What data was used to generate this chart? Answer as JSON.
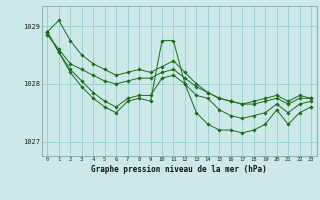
{
  "title": "Graphe pression niveau de la mer (hPa)",
  "bg_color": "#cce8e8",
  "grid_color": "#99cccc",
  "line_color": "#1a6b1a",
  "xlim": [
    -0.5,
    23.5
  ],
  "ylim": [
    1026.75,
    1029.35
  ],
  "yticks": [
    1027,
    1028,
    1029
  ],
  "xticks": [
    0,
    1,
    2,
    3,
    4,
    5,
    6,
    7,
    8,
    9,
    10,
    11,
    12,
    13,
    14,
    15,
    16,
    17,
    18,
    19,
    20,
    21,
    22,
    23
  ],
  "series": [
    [
      1028.9,
      1029.1,
      1028.75,
      1028.5,
      1028.35,
      1028.25,
      1028.15,
      1028.2,
      1028.25,
      1028.2,
      1028.3,
      1028.4,
      1028.2,
      1028.0,
      1027.85,
      1027.75,
      1027.7,
      1027.65,
      1027.7,
      1027.75,
      1027.8,
      1027.7,
      1027.8,
      1027.75
    ],
    [
      1028.85,
      1028.6,
      1028.35,
      1028.25,
      1028.15,
      1028.05,
      1028.0,
      1028.05,
      1028.1,
      1028.1,
      1028.2,
      1028.25,
      1028.1,
      1027.95,
      1027.85,
      1027.75,
      1027.7,
      1027.65,
      1027.65,
      1027.7,
      1027.75,
      1027.65,
      1027.75,
      1027.75
    ],
    [
      1028.9,
      1028.55,
      1028.2,
      1027.95,
      1027.75,
      1027.6,
      1027.5,
      1027.7,
      1027.75,
      1027.7,
      1028.75,
      1028.75,
      1028.0,
      1027.5,
      1027.3,
      1027.2,
      1027.2,
      1027.15,
      1027.2,
      1027.3,
      1027.55,
      1027.3,
      1027.5,
      1027.6
    ],
    [
      1028.9,
      1028.55,
      1028.25,
      1028.05,
      1027.85,
      1027.7,
      1027.6,
      1027.75,
      1027.8,
      1027.8,
      1028.1,
      1028.15,
      1028.0,
      1027.8,
      1027.75,
      1027.55,
      1027.45,
      1027.4,
      1027.45,
      1027.5,
      1027.65,
      1027.5,
      1027.65,
      1027.7
    ]
  ]
}
